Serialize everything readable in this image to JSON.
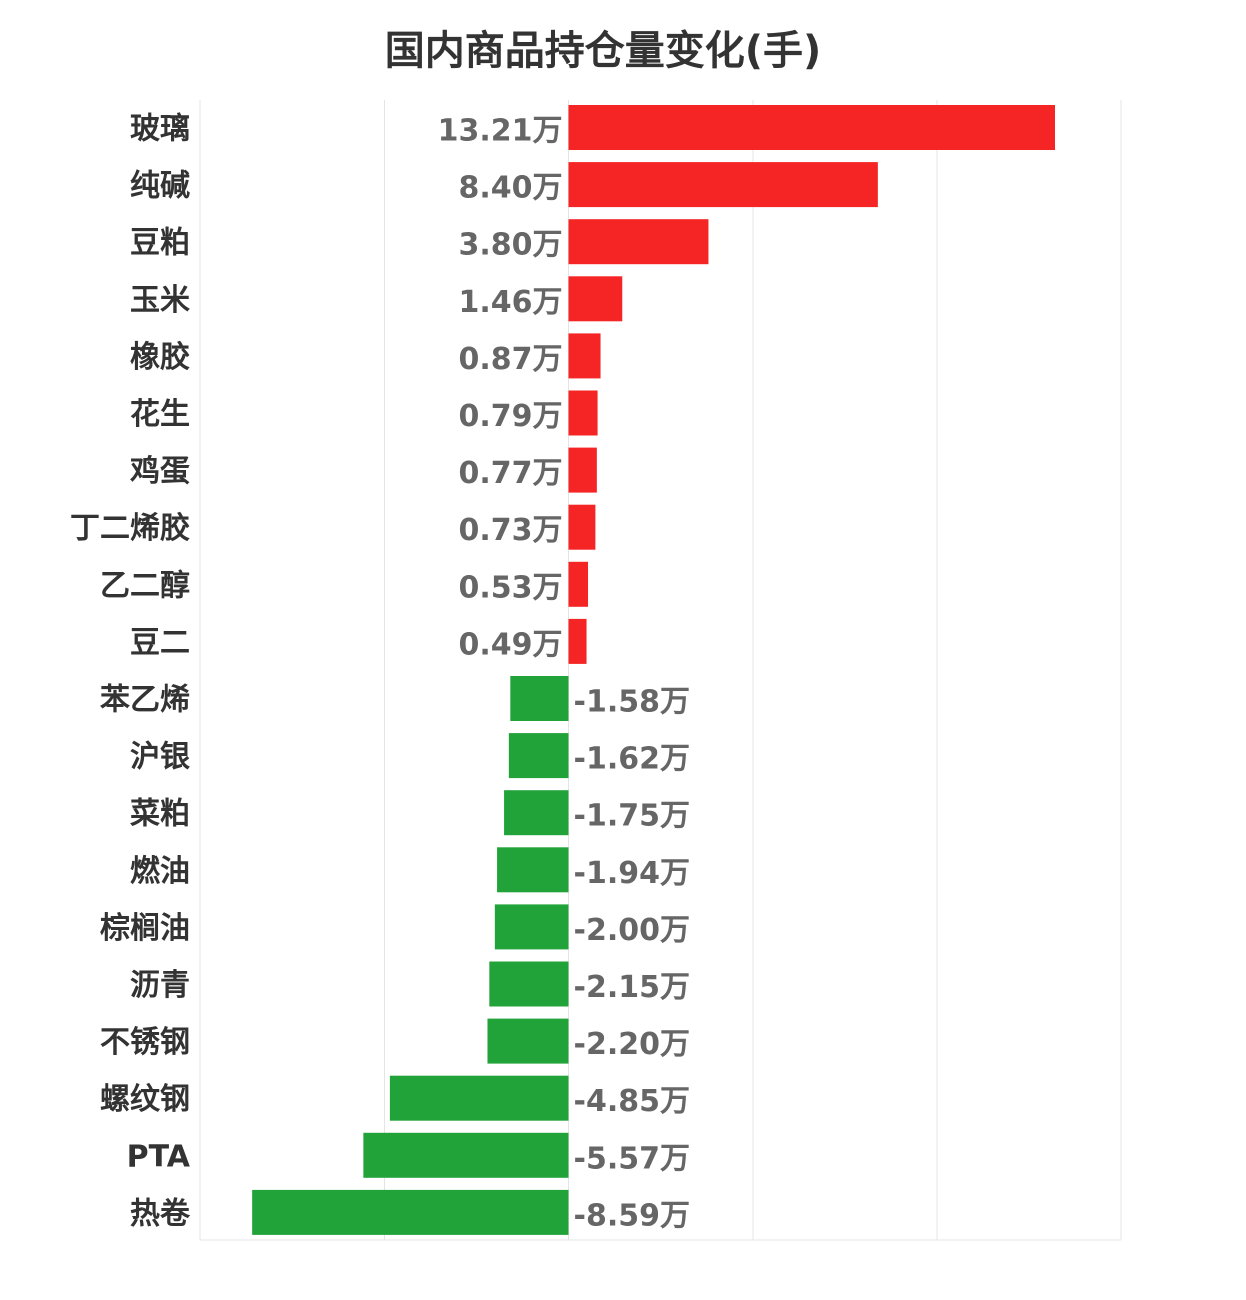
{
  "title": "国内商品持仓量变化(手)",
  "colors": {
    "positive": "#f52525",
    "negative": "#22a33a",
    "grid": "#e4e4e4"
  },
  "chart_data": {
    "type": "bar",
    "orientation": "horizontal",
    "title": "国内商品持仓量变化(手)",
    "unit": "万",
    "grid": true,
    "xlim": [
      -10,
      15
    ],
    "categories": [
      "玻璃",
      "纯碱",
      "豆粕",
      "玉米",
      "橡胶",
      "花生",
      "鸡蛋",
      "丁二烯胶",
      "乙二醇",
      "豆二",
      "苯乙烯",
      "沪银",
      "菜粕",
      "燃油",
      "棕榈油",
      "沥青",
      "不锈钢",
      "螺纹钢",
      "PTA",
      "热卷"
    ],
    "values": [
      13.21,
      8.4,
      3.8,
      1.46,
      0.87,
      0.79,
      0.77,
      0.73,
      0.53,
      0.49,
      -1.58,
      -1.62,
      -1.75,
      -1.94,
      -2.0,
      -2.15,
      -2.2,
      -4.85,
      -5.57,
      -8.59
    ],
    "labels": [
      "13.21万",
      "8.40万",
      "3.80万",
      "1.46万",
      "0.87万",
      "0.79万",
      "0.77万",
      "0.73万",
      "0.53万",
      "0.49万",
      "-1.58万",
      "-1.62万",
      "-1.75万",
      "-1.94万",
      "-2.00万",
      "-2.15万",
      "-2.20万",
      "-4.85万",
      "-5.57万",
      "-8.59万"
    ]
  }
}
